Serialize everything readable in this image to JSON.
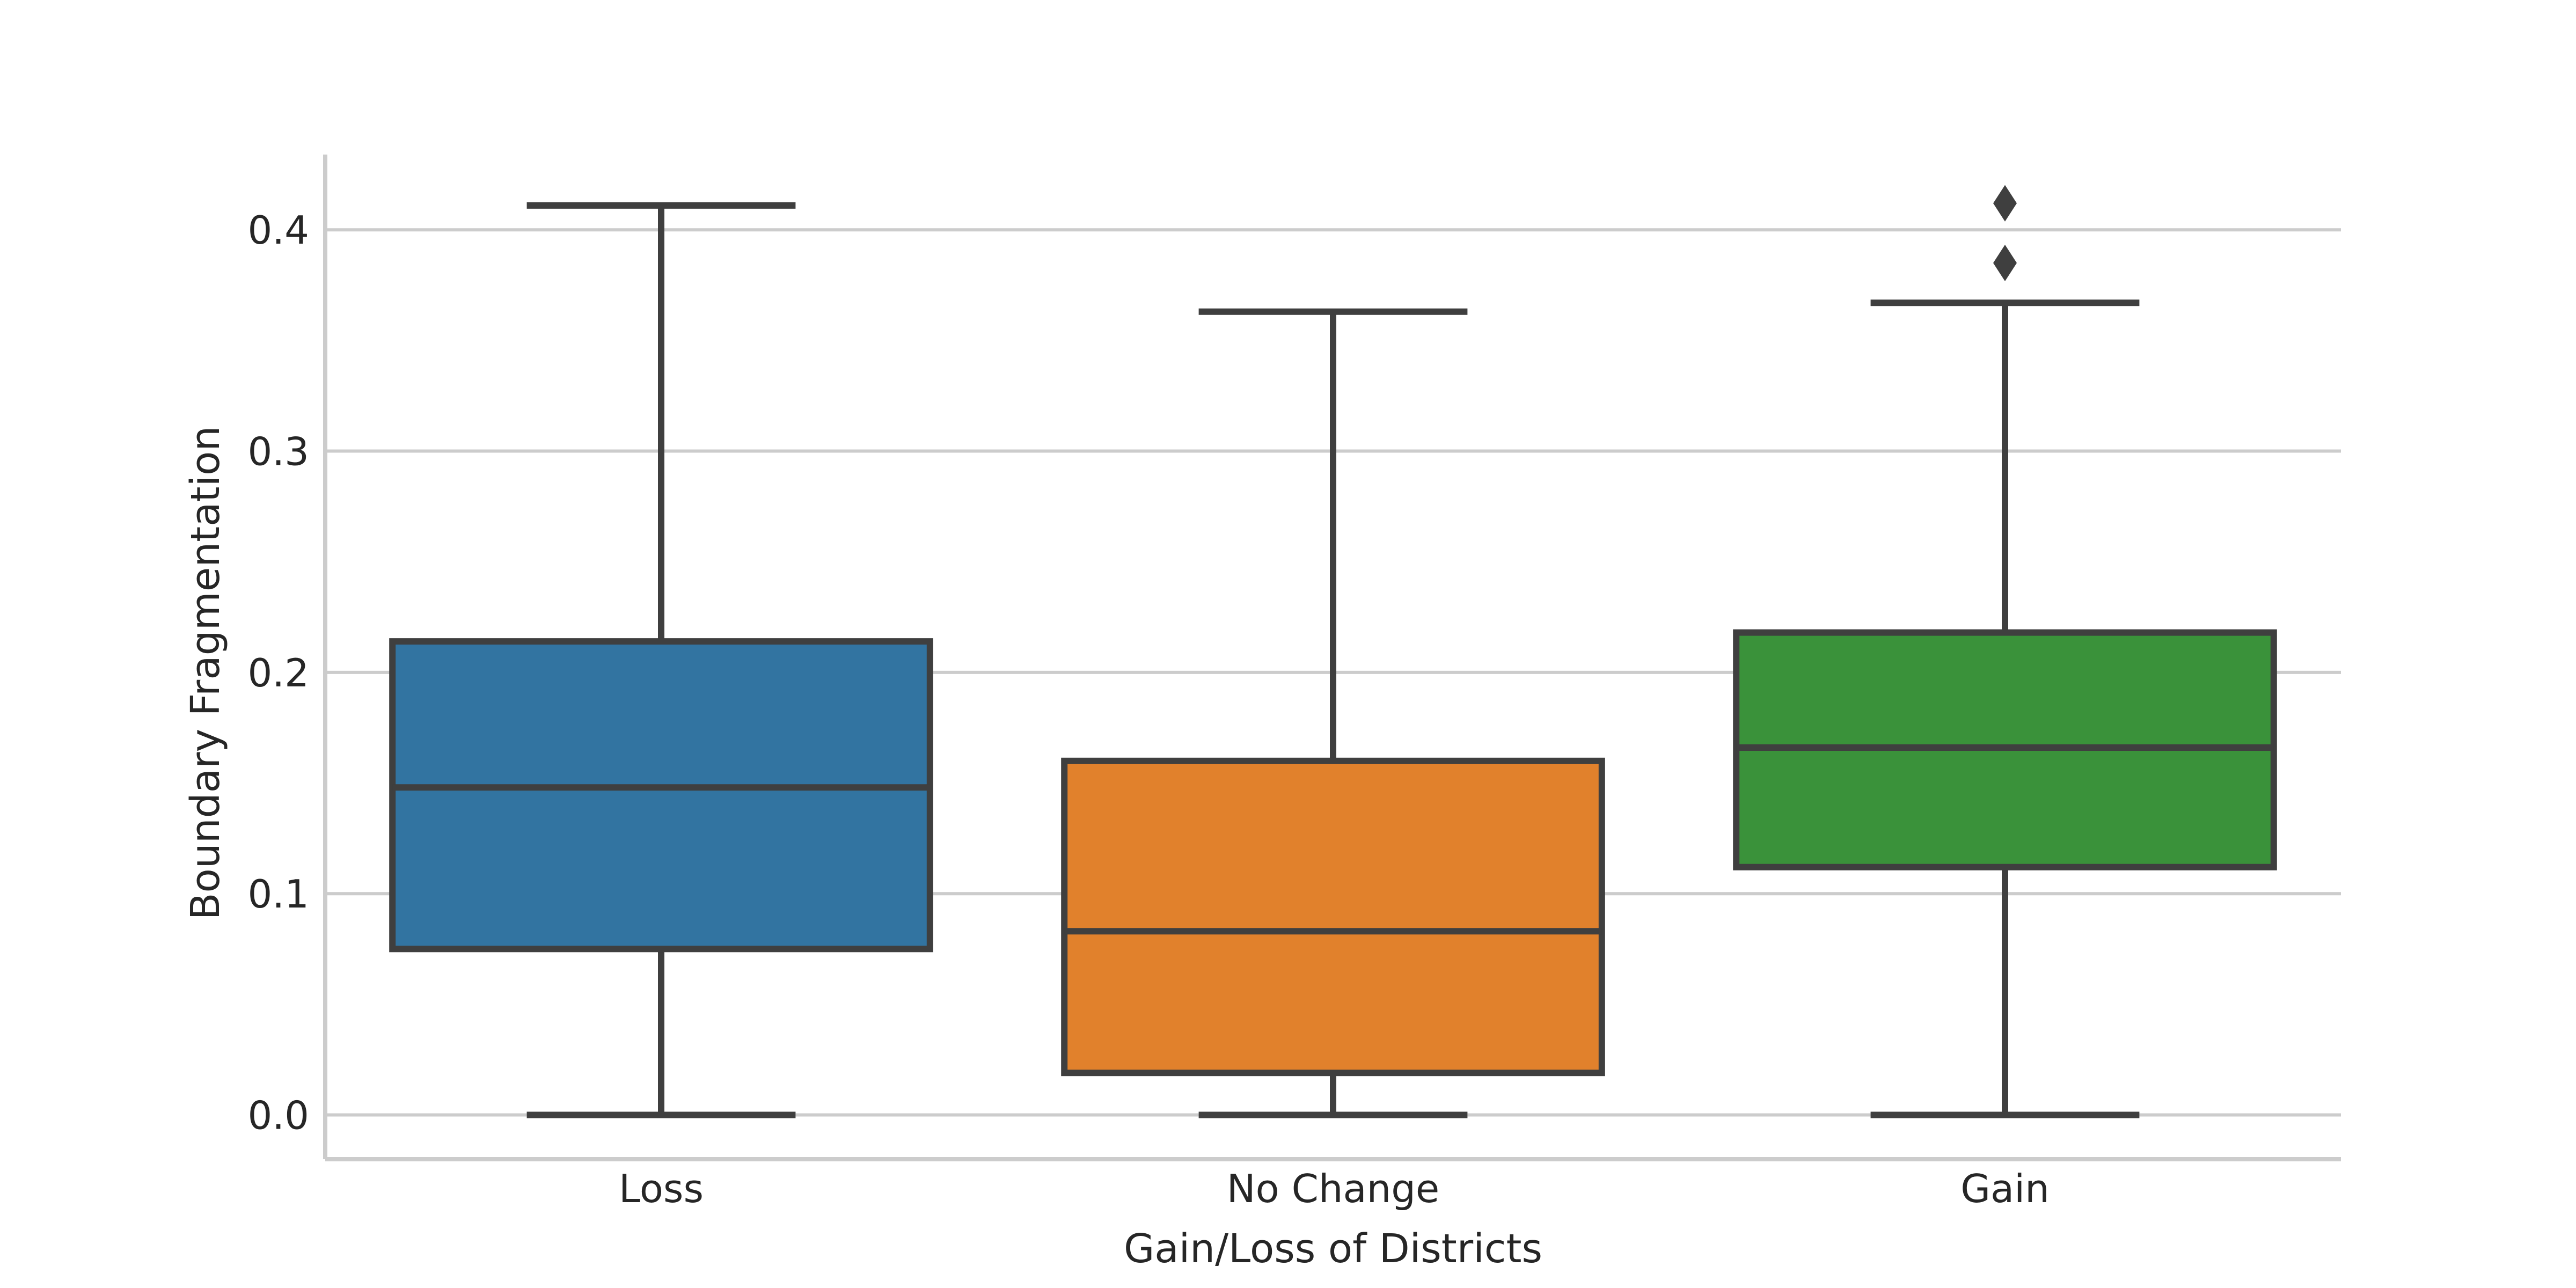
{
  "chart_data": {
    "type": "box",
    "title": "",
    "xlabel": "Gain/Loss of Districts",
    "ylabel": "Boundary Fragmentation",
    "ylim": [
      -0.02,
      0.434
    ],
    "yticks": [
      0.0,
      0.1,
      0.2,
      0.3,
      0.4
    ],
    "ytick_labels": [
      "0.0",
      "0.1",
      "0.2",
      "0.3",
      "0.4"
    ],
    "grid": "horizontal",
    "categories": [
      "Loss",
      "No Change",
      "Gain"
    ],
    "boxes": [
      {
        "category": "Loss",
        "color": "#3274a1",
        "whisker_low": 0.0,
        "q1": 0.075,
        "median": 0.148,
        "q3": 0.214,
        "whisker_high": 0.411,
        "outliers": []
      },
      {
        "category": "No Change",
        "color": "#e1812c",
        "whisker_low": 0.0,
        "q1": 0.019,
        "median": 0.083,
        "q3": 0.16,
        "whisker_high": 0.363,
        "outliers": []
      },
      {
        "category": "Gain",
        "color": "#3a923a",
        "whisker_low": 0.0,
        "q1": 0.112,
        "median": 0.166,
        "q3": 0.218,
        "whisker_high": 0.367,
        "outliers": [
          0.385,
          0.412
        ]
      }
    ]
  }
}
